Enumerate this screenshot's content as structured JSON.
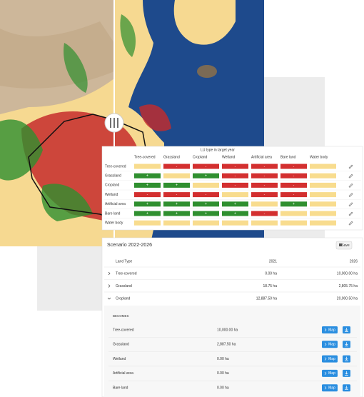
{
  "matrix": {
    "title": "LU type in target year",
    "columns": [
      "Tree-covered",
      "Grassland",
      "Cropland",
      "Wetland",
      "Artificial area",
      "Bare land",
      "Water body"
    ],
    "rows": [
      {
        "name": "Tree-covered",
        "cells": [
          null,
          "-",
          "-",
          "-",
          "-",
          "-",
          null
        ]
      },
      {
        "name": "Grassland",
        "cells": [
          "+",
          null,
          "+",
          "-",
          "-",
          "-",
          null
        ]
      },
      {
        "name": "Cropland",
        "cells": [
          "+",
          "+",
          null,
          "-",
          "-",
          "-",
          null
        ]
      },
      {
        "name": "Wetland",
        "cells": [
          "-",
          "-",
          "-",
          null,
          "-",
          "-",
          null
        ]
      },
      {
        "name": "Artificial area",
        "cells": [
          "+",
          "+",
          "+",
          "+",
          null,
          "+",
          null
        ]
      },
      {
        "name": "Bare land",
        "cells": [
          "+",
          "+",
          "+",
          "+",
          "-",
          null,
          null
        ]
      },
      {
        "name": "Water body",
        "cells": [
          null,
          null,
          null,
          null,
          null,
          null,
          null
        ]
      }
    ],
    "colors": {
      "+": "#2f8f2f",
      "-": "#d32f2f",
      "empty": "#f8dc8e"
    }
  },
  "scenario": {
    "title": "Scenario 2022-2026",
    "save": "Save",
    "headers": [
      "Land Type",
      "2021",
      "2026"
    ],
    "rows": [
      {
        "name": "Tree-covered",
        "v2021": "0.00 ha",
        "v2026": "10,000.00 ha"
      },
      {
        "name": "Grassland",
        "v2021": "18.75 ha",
        "v2026": "2,805.75 ha"
      },
      {
        "name": "Cropland",
        "v2021": "12,887.50 ha",
        "v2026": "20,000.50 ha"
      }
    ],
    "becomes_title": "BECOMES",
    "becomes": [
      {
        "name": "Tree-covered",
        "value": "10,000.00 ha",
        "button": "Map"
      },
      {
        "name": "Grassland",
        "value": "2,887.50 ha",
        "button": "Map"
      },
      {
        "name": "Wetland",
        "value": "0.00 ha",
        "button": "Map"
      },
      {
        "name": "Artificial area",
        "value": "0.00 ha",
        "button": "Map"
      },
      {
        "name": "Bare land",
        "value": "0.00 ha",
        "button": "Map"
      }
    ]
  }
}
